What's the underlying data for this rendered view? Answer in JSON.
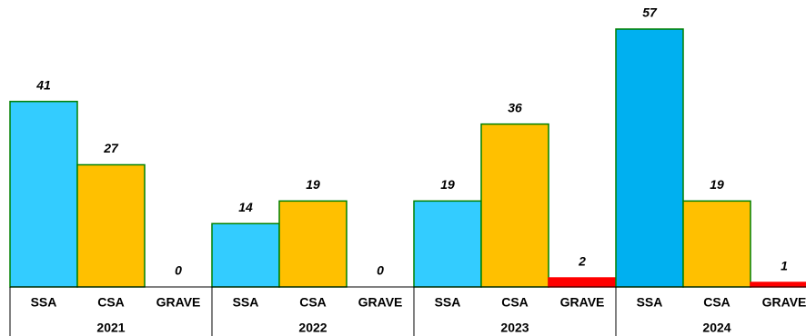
{
  "chart_data": {
    "type": "bar",
    "groups": [
      "2021",
      "2022",
      "2023",
      "2024"
    ],
    "categories": [
      "SSA",
      "CSA",
      "GRAVE",
      "SSA",
      "CSA",
      "GRAVE",
      "SSA",
      "CSA",
      "GRAVE",
      "SSA",
      "CSA",
      "GRAVE"
    ],
    "values": [
      41,
      27,
      0,
      14,
      19,
      0,
      19,
      36,
      2,
      57,
      19,
      1
    ],
    "colors": [
      "#33ccff",
      "#ffc000",
      "#ff0000",
      "#33ccff",
      "#ffc000",
      "#ff0000",
      "#33ccff",
      "#ffc000",
      "#ff0000",
      "#00b0f0",
      "#ffc000",
      "#ff0000"
    ],
    "ylim": [
      0,
      57
    ]
  }
}
